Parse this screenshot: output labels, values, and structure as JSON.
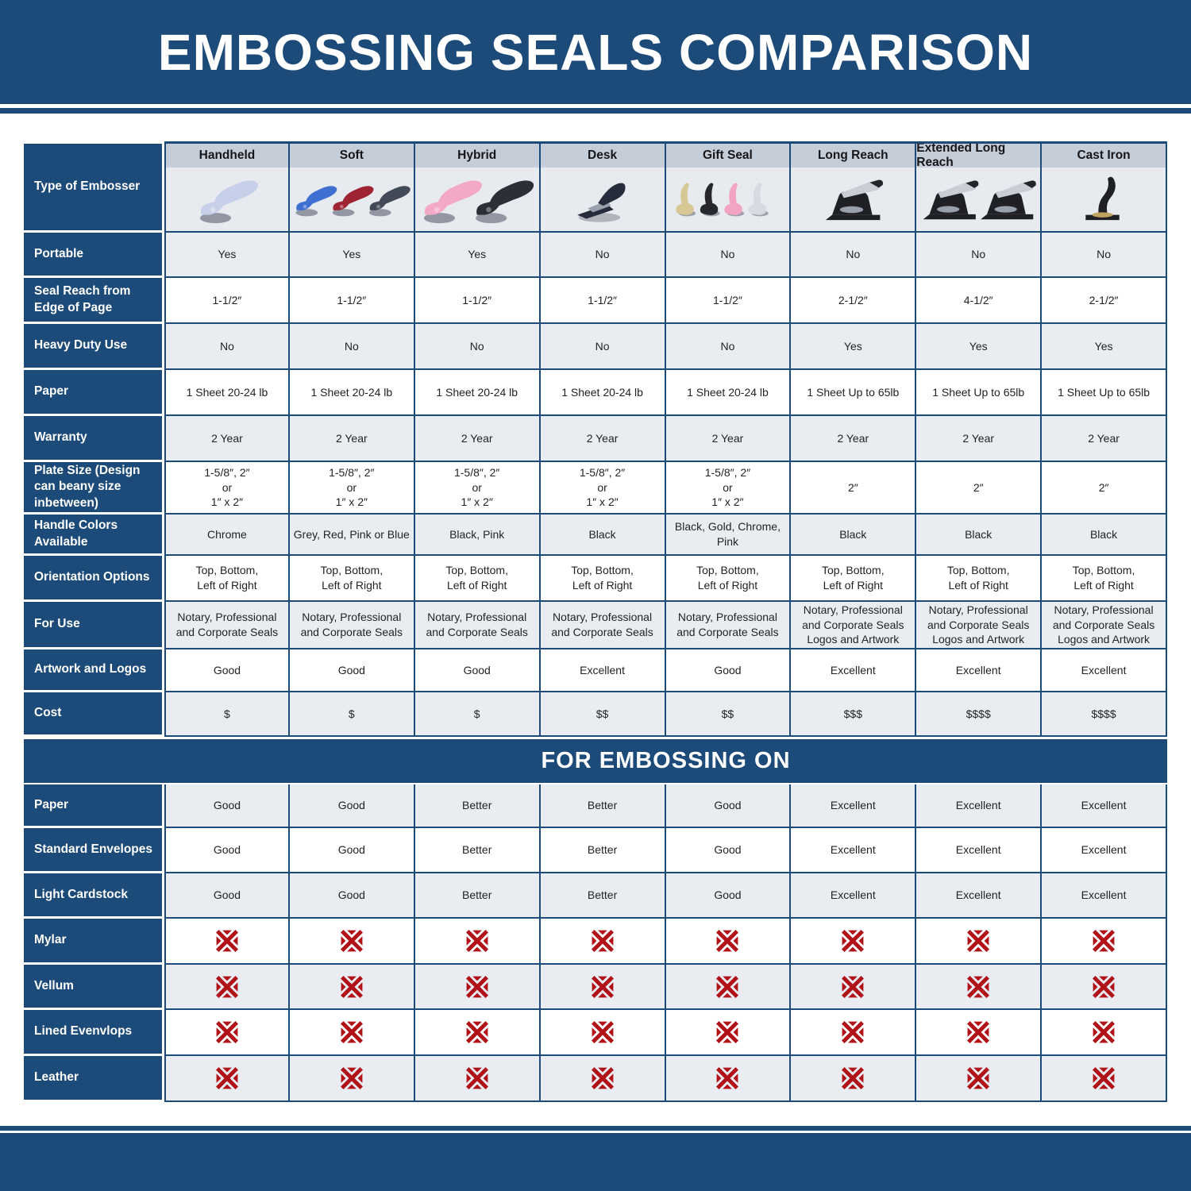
{
  "colors": {
    "navy": "#1d4b79",
    "row_gray": "#e9edf2",
    "column_header_band": "#c5cdd8",
    "image_band": "#e7eaee",
    "x_mark_red": "#b01218"
  },
  "chart_data": {
    "type": "table",
    "title": "EMBOSSING SEALS COMPARISON",
    "row_header": "Type of Embosser",
    "columns": [
      {
        "name": "Handheld",
        "icon": "plier",
        "icon_name": "handheld-embosser-icon",
        "icon_colors": [
          "#c7d0e8"
        ]
      },
      {
        "name": "Soft",
        "icon": "plier",
        "icon_name": "soft-embosser-icon",
        "icon_colors": [
          "#3f6fd1",
          "#9e2433",
          "#434a57"
        ]
      },
      {
        "name": "Hybrid",
        "icon": "plier",
        "icon_name": "hybrid-embosser-icon",
        "icon_colors": [
          "#f3a8c6",
          "#2b2f36"
        ]
      },
      {
        "name": "Desk",
        "icon": "desk",
        "icon_name": "desk-embosser-icon",
        "icon_colors": [
          "#262c3c"
        ]
      },
      {
        "name": "Gift Seal",
        "icon": "upright",
        "icon_name": "gift-seal-embosser-icon",
        "icon_colors": [
          "#d7c794",
          "#26282e",
          "#f2a4c2",
          "#d6dae2"
        ]
      },
      {
        "name": "Long Reach",
        "icon": "press",
        "icon_name": "long-reach-embosser-icon",
        "icon_colors": [
          "#1e2026"
        ]
      },
      {
        "name": "Extended Long Reach",
        "icon": "press",
        "icon_name": "extended-long-reach-embosser-icon",
        "icon_colors": [
          "#1e2026",
          "#1e2026"
        ]
      },
      {
        "name": "Cast Iron",
        "icon": "castiron",
        "icon_name": "cast-iron-embosser-icon",
        "icon_colors": [
          "#1e2026"
        ]
      }
    ],
    "spec_rows": [
      {
        "label": "Portable",
        "values": [
          "Yes",
          "Yes",
          "Yes",
          "No",
          "No",
          "No",
          "No",
          "No"
        ]
      },
      {
        "label": "Seal Reach from Edge of Page",
        "values": [
          "1-1/2″",
          "1-1/2″",
          "1-1/2″",
          "1-1/2″",
          "1-1/2″",
          "2-1/2″",
          "4-1/2″",
          "2-1/2″"
        ]
      },
      {
        "label": "Heavy Duty Use",
        "values": [
          "No",
          "No",
          "No",
          "No",
          "No",
          "Yes",
          "Yes",
          "Yes"
        ]
      },
      {
        "label": "Paper",
        "values": [
          "1 Sheet 20-24 lb",
          "1 Sheet 20-24 lb",
          "1 Sheet 20-24 lb",
          "1 Sheet 20-24 lb",
          "1 Sheet 20-24 lb",
          "1 Sheet Up to 65lb",
          "1 Sheet Up to 65lb",
          "1 Sheet Up to 65lb"
        ]
      },
      {
        "label": "Warranty",
        "values": [
          "2 Year",
          "2 Year",
          "2 Year",
          "2 Year",
          "2 Year",
          "2 Year",
          "2 Year",
          "2 Year"
        ]
      },
      {
        "label": "Plate Size (Design can beany size inbetween)",
        "values": [
          "1-5/8″, 2″\nor\n1″ x 2″",
          "1-5/8″, 2″\nor\n1″ x 2″",
          "1-5/8″, 2″\nor\n1″ x 2″",
          "1-5/8″, 2″\nor\n1″ x 2″",
          "1-5/8″, 2″\nor\n1″ x 2″",
          "2″",
          "2″",
          "2″"
        ]
      },
      {
        "label": "Handle Colors Available",
        "values": [
          "Chrome",
          "Grey, Red, Pink or Blue",
          "Black, Pink",
          "Black",
          "Black, Gold, Chrome, Pink",
          "Black",
          "Black",
          "Black"
        ]
      },
      {
        "label": "Orientation Options",
        "values": [
          "Top, Bottom,\nLeft of Right",
          "Top, Bottom,\nLeft of Right",
          "Top, Bottom,\nLeft of Right",
          "Top, Bottom,\nLeft of Right",
          "Top, Bottom,\nLeft of Right",
          "Top, Bottom,\nLeft of Right",
          "Top, Bottom,\nLeft of Right",
          "Top, Bottom,\nLeft of Right"
        ]
      },
      {
        "label": "For Use",
        "values": [
          "Notary, Professional\nand Corporate Seals",
          "Notary, Professional\nand Corporate Seals",
          "Notary, Professional\nand Corporate Seals",
          "Notary, Professional\nand Corporate Seals",
          "Notary, Professional\nand Corporate Seals",
          "Notary, Professional\nand Corporate Seals\nLogos and Artwork",
          "Notary, Professional\nand Corporate Seals\nLogos and Artwork",
          "Notary, Professional\nand Corporate Seals\nLogos and Artwork"
        ]
      },
      {
        "label": "Artwork and Logos",
        "values": [
          "Good",
          "Good",
          "Good",
          "Excellent",
          "Good",
          "Excellent",
          "Excellent",
          "Excellent"
        ]
      },
      {
        "label": "Cost",
        "values": [
          "$",
          "$",
          "$",
          "$$",
          "$$",
          "$$$",
          "$$$$",
          "$$$$"
        ]
      }
    ],
    "embossing_section_label": "FOR EMBOSSING ON",
    "embossing_rows": [
      {
        "label": "Paper",
        "values": [
          "Good",
          "Good",
          "Better",
          "Better",
          "Good",
          "Excellent",
          "Excellent",
          "Excellent"
        ]
      },
      {
        "label": "Standard Envelopes",
        "values": [
          "Good",
          "Good",
          "Better",
          "Better",
          "Good",
          "Excellent",
          "Excellent",
          "Excellent"
        ]
      },
      {
        "label": "Light Cardstock",
        "values": [
          "Good",
          "Good",
          "Better",
          "Better",
          "Good",
          "Excellent",
          "Excellent",
          "Excellent"
        ]
      },
      {
        "label": "Mylar",
        "values": [
          "X",
          "X",
          "X",
          "X",
          "X",
          "X",
          "X",
          "X"
        ]
      },
      {
        "label": "Vellum",
        "values": [
          "X",
          "X",
          "X",
          "X",
          "X",
          "X",
          "X",
          "X"
        ]
      },
      {
        "label": "Lined Evenvlops",
        "values": [
          "X",
          "X",
          "X",
          "X",
          "X",
          "X",
          "X",
          "X"
        ]
      },
      {
        "label": "Leather",
        "values": [
          "X",
          "X",
          "X",
          "X",
          "X",
          "X",
          "X",
          "X"
        ]
      }
    ]
  }
}
